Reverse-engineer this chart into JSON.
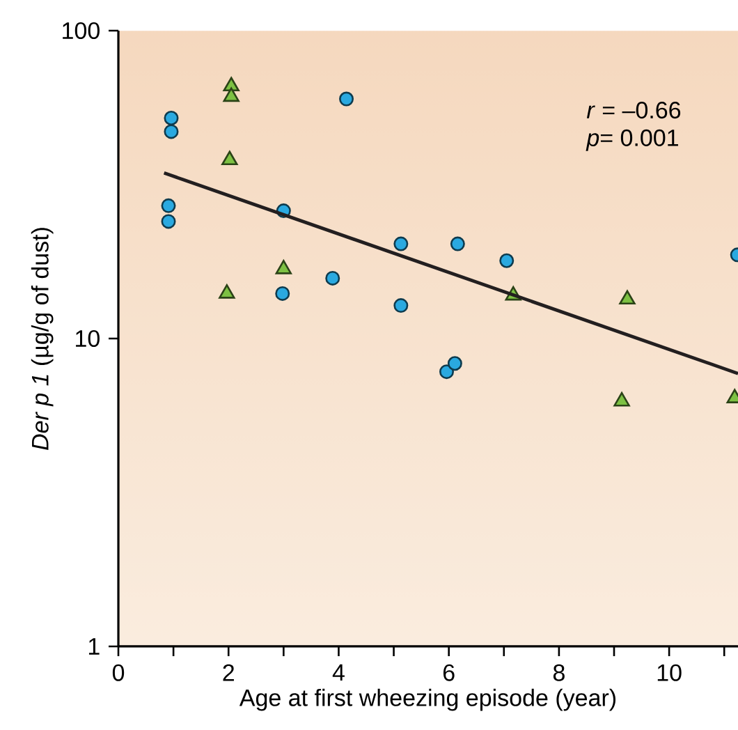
{
  "chart_data": {
    "type": "scatter",
    "xlabel": "Age at first wheezing episode (year)",
    "ylabel": "*Der p 1* (µg/g of dust)",
    "xlim": [
      0,
      11.25
    ],
    "ylim": [
      1,
      100
    ],
    "log": "y",
    "xticks": [
      0,
      {
        "value": 1,
        "label": null
      },
      2,
      {
        "value": 3,
        "label": null
      },
      4,
      {
        "value": 5,
        "label": null
      },
      6,
      {
        "value": 7,
        "label": null
      },
      8,
      {
        "value": 9,
        "label": null
      },
      10,
      {
        "value": 11,
        "label": null
      }
    ],
    "yticks": [
      1,
      10,
      100
    ],
    "annotations": [
      "*r* = –0.66",
      "*p*=   0.001"
    ],
    "series": [
      {
        "marker": "circle",
        "color": "#2aa9e0",
        "x": [
          0.96,
          0.96,
          0.91,
          0.91,
          4.14,
          3.0,
          2.98,
          3.89,
          5.13,
          5.13,
          6.16,
          7.05,
          5.96,
          6.11,
          11.24
        ],
        "values": [
          52,
          47,
          27,
          24,
          60,
          26,
          14,
          15.7,
          20.3,
          12.8,
          20.3,
          17.9,
          7.8,
          8.3,
          18.7
        ]
      },
      {
        "marker": "triangle",
        "color": "#7dc143",
        "x": [
          2.05,
          2.05,
          2.02,
          3.0,
          1.97,
          7.17,
          9.24,
          9.14,
          11.19
        ],
        "values": [
          66,
          61,
          38,
          16.8,
          14,
          13.8,
          13.4,
          6.25,
          6.4
        ]
      },
      {
        "type": "line",
        "marker": "none",
        "color": "#231f20",
        "x": [
          0.83,
          11.25
        ],
        "values": [
          34.5,
          7.7
        ]
      }
    ]
  }
}
